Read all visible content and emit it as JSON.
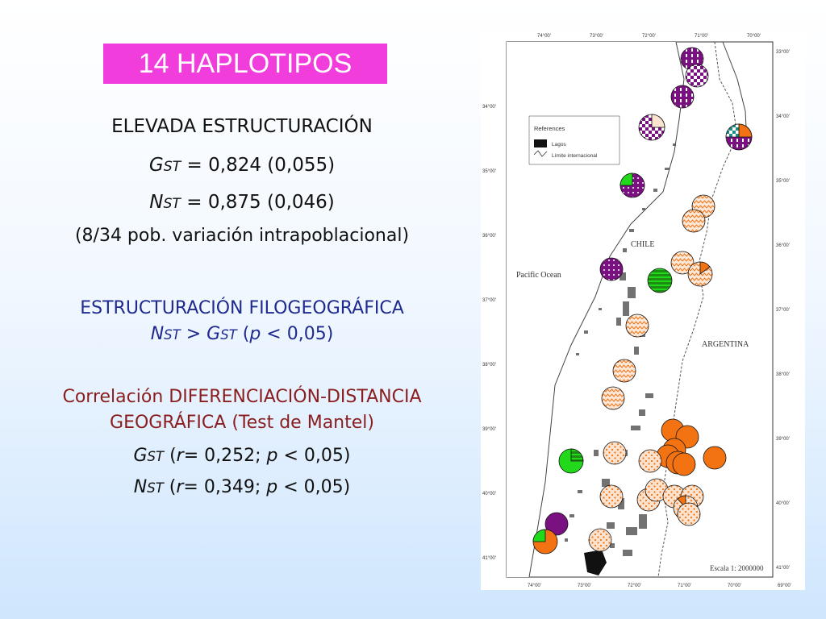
{
  "title": "14 HAPLOTIPOS",
  "s1": {
    "heading": "ELEVADA ESTRUCTURACIÓN",
    "gst_sym": "G",
    "gst_sub": "ST",
    "gst_val": " = 0,824 (0,055)",
    "nst_sym": "N",
    "nst_sub": "ST",
    "nst_val": " = 0,875 (0,046)",
    "note": "(8/34 pob. variación intrapoblacional)"
  },
  "s2": {
    "heading": "ESTRUCTURACIÓN FILOGEOGRÁFICA",
    "a": "N",
    "a_sub": "ST",
    "gt": " > ",
    "b": "G",
    "b_sub": "ST",
    "cond_open": " (",
    "p": "p",
    "cond_rest": " < 0,05)"
  },
  "s3": {
    "line1": "Correlación DIFERENCIACIÓN-DISTANCIA",
    "line2": "GEOGRÁFICA (Test de Mantel)",
    "g": "G",
    "g_sub": "ST",
    "g_open": " (",
    "g_r": "r",
    "g_mid": "= 0,252; ",
    "g_p": "p",
    "g_end": " < 0,05)",
    "n": "N",
    "n_sub": "ST",
    "n_open": " (",
    "n_r": "r",
    "n_mid": "= 0,349; ",
    "n_p": "p",
    "n_end": " < 0,05)"
  },
  "map": {
    "top_ticks": [
      "74°00'",
      "73°00'",
      "72°00'",
      "71°00'",
      "70°00'"
    ],
    "bottom_ticks": [
      "74°00'",
      "73°00'",
      "72°00'",
      "71°00'",
      "70°00'",
      "69°00'"
    ],
    "left_ticks": [
      "34°00'",
      "35°00'",
      "36°00'",
      "37°00'",
      "38°00'",
      "39°00'",
      "40°00'",
      "41°00'"
    ],
    "right_ticks": [
      "33°00'",
      "34°00'",
      "35°00'",
      "36°00'",
      "37°00'",
      "38°00'",
      "39°00'",
      "40°00'",
      "41°00'"
    ],
    "legend_title": "References",
    "legend_lakes": "Lagos",
    "legend_border": "Límite internacional",
    "chile": "CHILE",
    "argentina": "ARGENTINA",
    "ocean": "Pacific Ocean",
    "scale": "Escala 1: 2000000",
    "colors": {
      "purple": "#7a1180",
      "orange": "#f37313",
      "green": "#21d91a",
      "teal": "#1d8d84",
      "peach": "#f6caa8"
    }
  }
}
